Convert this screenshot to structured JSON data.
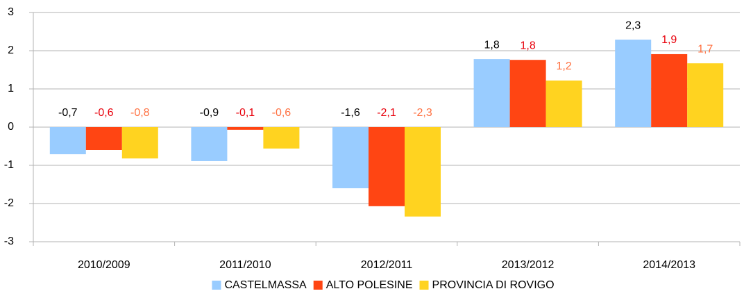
{
  "chart_data": {
    "type": "bar",
    "categories": [
      "2010/2009",
      "2011/2010",
      "2012/2011",
      "2013/2012",
      "2014/2013"
    ],
    "series": [
      {
        "name": "CASTELMASSA",
        "color": "#99ccff",
        "label_color": "#000000",
        "values": [
          -0.71,
          -0.89,
          -1.6,
          1.78,
          2.29
        ],
        "value_labels": [
          "-0,7",
          "-0,9",
          "-1,6",
          "1,8",
          "2,3"
        ]
      },
      {
        "name": "ALTO POLESINE",
        "color": "#ff4513",
        "label_color": "#e8000b",
        "values": [
          -0.6,
          -0.07,
          -2.07,
          1.76,
          1.91
        ],
        "value_labels": [
          "-0,6",
          "-0,1",
          "-2,1",
          "1,8",
          "1,9"
        ]
      },
      {
        "name": "PROVINCIA DI ROVIGO",
        "color": "#ffd320",
        "label_color": "#ff7040",
        "values": [
          -0.82,
          -0.56,
          -2.34,
          1.22,
          1.67
        ],
        "value_labels": [
          "-0,8",
          "-0,6",
          "-2,3",
          "1,2",
          "1,7"
        ]
      }
    ],
    "ylim": [
      -3,
      3
    ],
    "yticks": [
      -3,
      -2,
      -1,
      0,
      1,
      2,
      3
    ],
    "grid": true,
    "legend": "bottom"
  }
}
